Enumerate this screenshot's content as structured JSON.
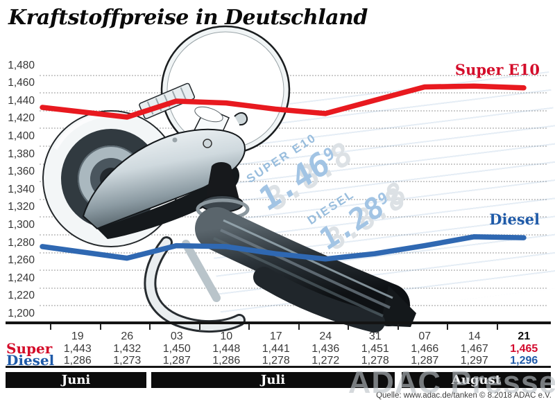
{
  "title": "Kraftstoffpreise in Deutschland",
  "legend": {
    "super": "Super E10",
    "diesel": "Diesel"
  },
  "colors": {
    "super_line": "#e8191f",
    "super_text": "#d30b2e",
    "diesel_line": "#2f68b2",
    "diesel_text": "#1f5aa8"
  },
  "y_axis": {
    "tick_labels": [
      "1,480",
      "1,460",
      "1,440",
      "1,420",
      "1,400",
      "1,380",
      "1,360",
      "1,340",
      "1,320",
      "1,300",
      "1,280",
      "1,260",
      "1,240",
      "1,220",
      "1,200"
    ]
  },
  "chart_data": {
    "type": "line",
    "title": "Kraftstoffpreise in Deutschland",
    "categories": [
      "19",
      "26",
      "03",
      "10",
      "17",
      "24",
      "31",
      "07",
      "14",
      "21"
    ],
    "month_groups": [
      {
        "label": "Juni",
        "from": "19",
        "to": "26"
      },
      {
        "label": "Juli",
        "from": "03",
        "to": "31"
      },
      {
        "label": "August",
        "from": "07",
        "to": "21"
      }
    ],
    "ylim": [
      1.2,
      1.48
    ],
    "ytick_step": 0.02,
    "grid": "dotted-horizontal",
    "legend_position": "inline-right",
    "series": [
      {
        "name": "Super",
        "label": "Super E10",
        "values": [
          1.443,
          1.432,
          1.45,
          1.448,
          1.441,
          1.436,
          1.451,
          1.466,
          1.467,
          1.465
        ]
      },
      {
        "name": "Diesel",
        "label": "Diesel",
        "values": [
          1.286,
          1.273,
          1.287,
          1.286,
          1.278,
          1.272,
          1.278,
          1.287,
          1.297,
          1.296
        ]
      }
    ]
  },
  "table": {
    "dates": [
      "19",
      "26",
      "03",
      "10",
      "17",
      "24",
      "31",
      "07",
      "14",
      "21"
    ],
    "rows": [
      {
        "label": "Super",
        "values": [
          "1,443",
          "1,432",
          "1,450",
          "1,448",
          "1,441",
          "1,436",
          "1,451",
          "1,466",
          "1,467",
          "1,465"
        ]
      },
      {
        "label": "Diesel",
        "values": [
          "1,286",
          "1,273",
          "1,287",
          "1,286",
          "1,278",
          "1,272",
          "1,278",
          "1,287",
          "1,297",
          "1,296"
        ]
      }
    ],
    "months": [
      "Juni",
      "Juli",
      "August"
    ]
  },
  "pump_display": {
    "super_label": "SUPER E10",
    "super_value": "1.46",
    "super_sup": "9",
    "diesel_label": "DIESEL",
    "diesel_value": "1.28",
    "diesel_sup": "9",
    "ghost_digits": "8.8.8",
    "ghost_trail": "8"
  },
  "source": "Quelle: www.adac.de/tanken   © 8.2018   ADAC e.V.",
  "watermark": "ADAC Presse"
}
